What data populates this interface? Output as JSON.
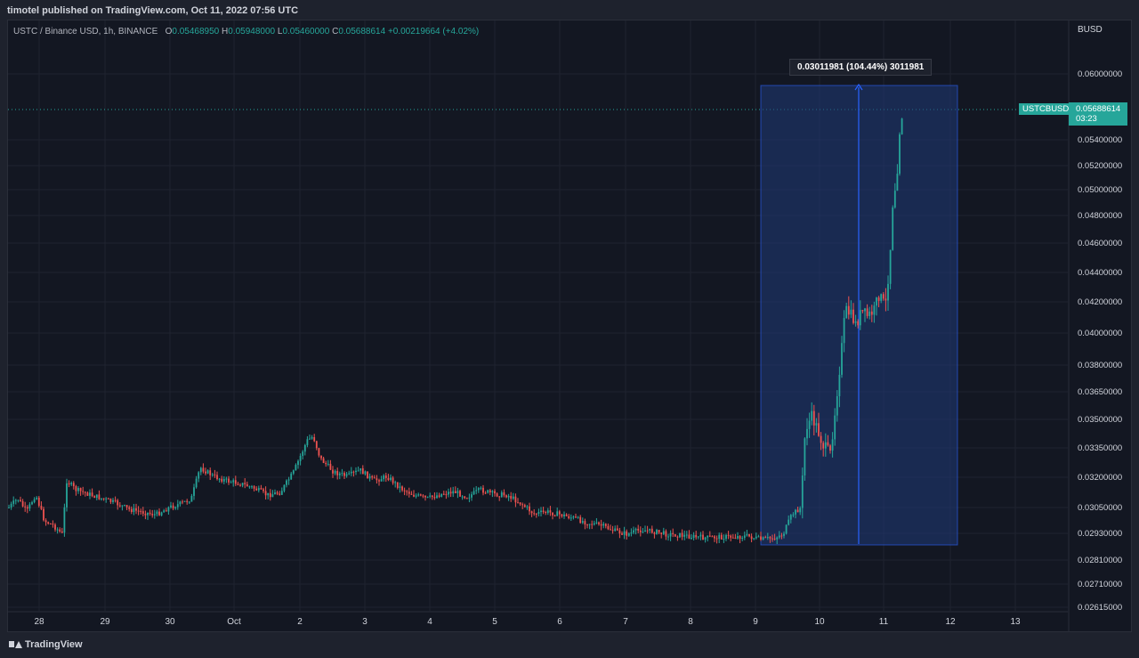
{
  "header": {
    "text": "timotel published on TradingView.com, Oct 11, 2022 07:56 UTC"
  },
  "legend": {
    "symbol": "USTC / Binance USD, 1h, BINANCE",
    "open_label": "O",
    "open": "0.05468950",
    "high_label": "H",
    "high": "0.05948000",
    "low_label": "L",
    "low": "0.05460000",
    "close_label": "C",
    "close": "0.05688614",
    "change": "+0.00219664 (+4.02%)"
  },
  "axis": {
    "unit": "BUSD",
    "price_labels": [
      "0.06000000",
      "0.05400000",
      "0.05200000",
      "0.05000000",
      "0.04800000",
      "0.04600000",
      "0.04400000",
      "0.04200000",
      "0.04000000",
      "0.03800000",
      "0.03650000",
      "0.03500000",
      "0.03350000",
      "0.03200000",
      "0.03050000",
      "0.02930000",
      "0.02810000",
      "0.02710000",
      "0.02615000"
    ],
    "date_labels": [
      "28",
      "29",
      "30",
      "Oct",
      "2",
      "3",
      "4",
      "5",
      "6",
      "7",
      "8",
      "9",
      "10",
      "11",
      "12",
      "13"
    ]
  },
  "current": {
    "symbol": "USTCBUSD",
    "price": "0.05688614",
    "countdown": "03:23"
  },
  "measure": {
    "text": "0.03011981 (104.44%) 3011981"
  },
  "footer": {
    "brand": "TradingView"
  },
  "colors": {
    "up": "#26a69a",
    "down": "#ef5350",
    "background": "#131722",
    "measure_fill": "#1f3a78"
  }
}
